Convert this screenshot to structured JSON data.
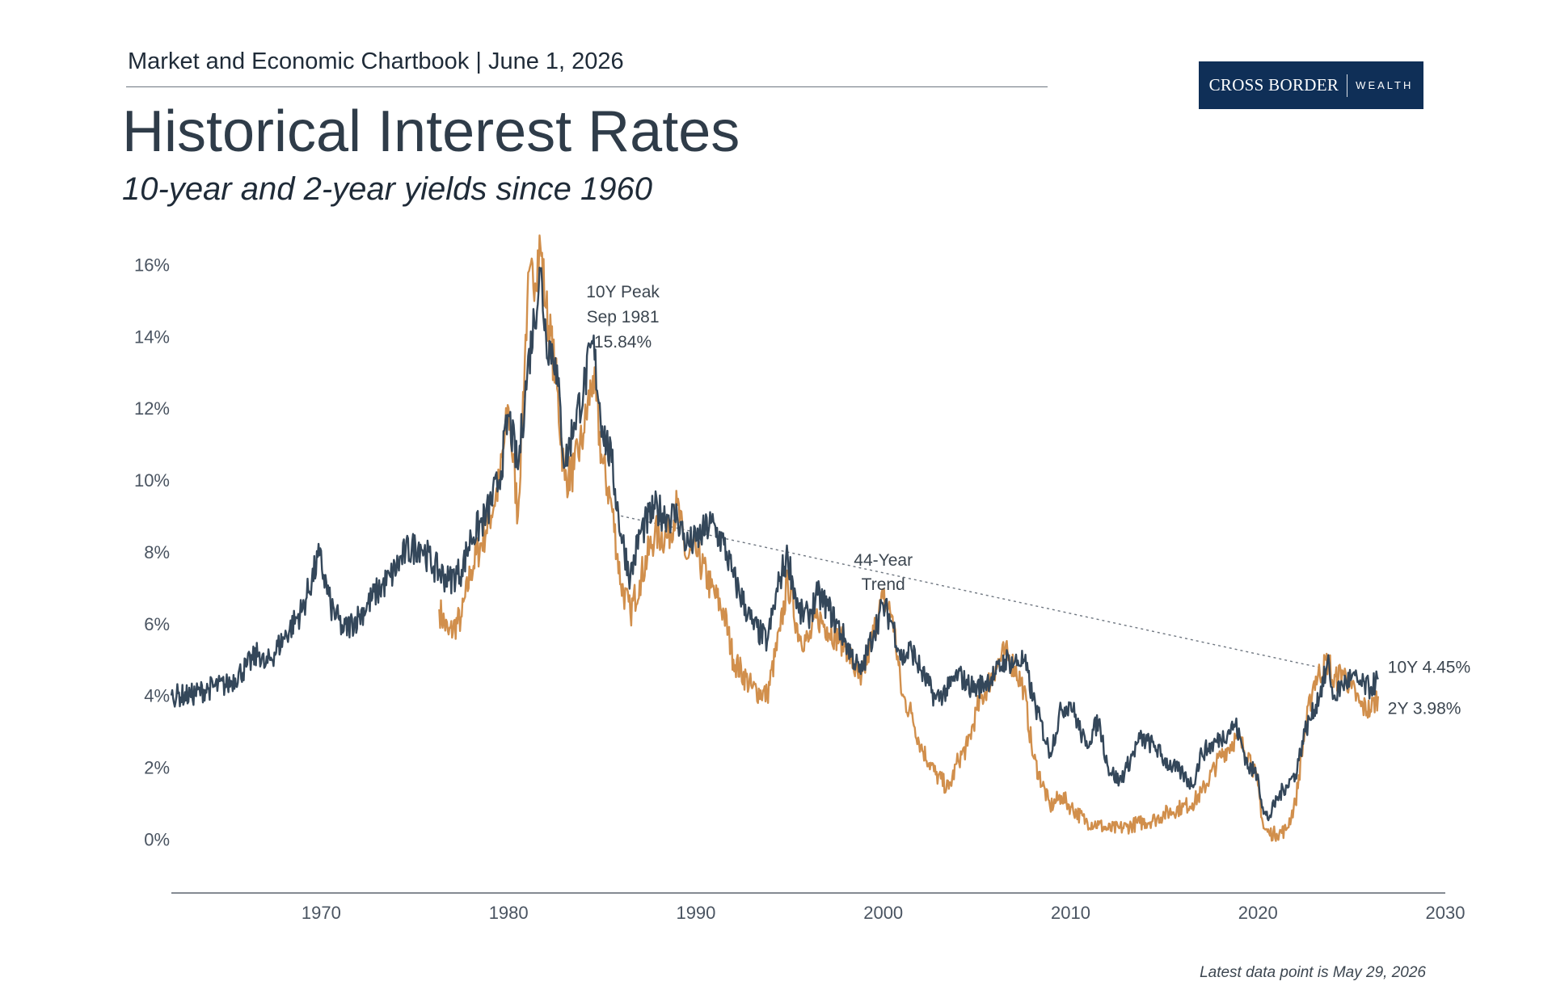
{
  "header": {
    "kicker": "Market and Economic Chartbook | June 1, 2026",
    "title": "Historical Interest Rates",
    "subtitle": "10-year and 2-year yields since 1960"
  },
  "logo": {
    "main": "CROSS BORDER",
    "sub": "WEALTH",
    "bg_color": "#0f2f57"
  },
  "footnote": "Latest data point is May 29, 2026",
  "chart_data": {
    "type": "line",
    "title": "Historical Interest Rates",
    "subtitle": "10-year and 2-year yields since 1960",
    "xlim": [
      1962,
      2030
    ],
    "ylim": [
      -1.5,
      17
    ],
    "x_ticks": [
      1970,
      1980,
      1990,
      2000,
      2010,
      2020,
      2030
    ],
    "x_tick_labels": [
      "1970",
      "1980",
      "1990",
      "2000",
      "2010",
      "2020",
      "2030"
    ],
    "y_ticks": [
      0,
      2,
      4,
      6,
      8,
      10,
      12,
      14,
      16
    ],
    "y_tick_labels": [
      "0%",
      "2%",
      "4%",
      "6%",
      "8%",
      "10%",
      "12%",
      "14%",
      "16%"
    ],
    "grid": false,
    "series": [
      {
        "name": "10Y",
        "color": "#34475a",
        "end_label": "10Y 4.45%",
        "x": [
          1962.0,
          1963.0,
          1964.0,
          1965.0,
          1966.0,
          1966.7,
          1967.0,
          1968.0,
          1969.0,
          1969.9,
          1970.5,
          1971.2,
          1972.0,
          1973.0,
          1973.7,
          1974.5,
          1975.3,
          1976.0,
          1976.8,
          1977.5,
          1978.0,
          1978.8,
          1979.5,
          1980.0,
          1980.5,
          1981.0,
          1981.7,
          1982.0,
          1982.5,
          1983.0,
          1983.5,
          1984.0,
          1984.5,
          1985.0,
          1985.5,
          1986.0,
          1986.5,
          1987.0,
          1987.8,
          1988.5,
          1989.0,
          1989.5,
          1990.0,
          1990.8,
          1991.5,
          1992.0,
          1993.0,
          1993.8,
          1994.5,
          1994.9,
          1995.5,
          1996.0,
          1996.5,
          1997.0,
          1998.0,
          1998.8,
          1999.5,
          2000.0,
          2000.5,
          2001.0,
          2001.5,
          2002.0,
          2002.8,
          2003.5,
          2004.0,
          2004.5,
          2005.0,
          2006.0,
          2006.5,
          2007.0,
          2007.5,
          2008.0,
          2008.9,
          2009.5,
          2010.0,
          2010.8,
          2011.5,
          2012.0,
          2012.6,
          2013.0,
          2013.7,
          2014.5,
          2015.0,
          2016.0,
          2016.5,
          2017.0,
          2018.0,
          2018.8,
          2019.5,
          2020.0,
          2020.3,
          2020.6,
          2021.0,
          2021.5,
          2022.0,
          2022.5,
          2023.0,
          2023.8,
          2024.0,
          2024.5,
          2025.0,
          2025.5,
          2026.0,
          2026.41
        ],
        "y": [
          4.0,
          4.0,
          4.2,
          4.3,
          4.8,
          5.2,
          4.8,
          5.6,
          6.4,
          7.9,
          6.5,
          5.8,
          6.2,
          6.9,
          7.3,
          8.0,
          8.2,
          7.6,
          7.2,
          7.5,
          8.4,
          9.0,
          10.0,
          11.8,
          10.3,
          13.0,
          15.84,
          14.0,
          13.4,
          10.4,
          11.6,
          12.5,
          13.8,
          11.5,
          10.5,
          8.5,
          7.3,
          8.5,
          9.2,
          9.0,
          9.0,
          8.2,
          8.3,
          8.8,
          8.2,
          7.3,
          6.0,
          5.5,
          7.3,
          7.9,
          6.3,
          6.2,
          6.8,
          6.5,
          5.5,
          4.6,
          5.8,
          6.5,
          6.0,
          5.0,
          5.3,
          4.7,
          3.9,
          4.2,
          4.6,
          4.3,
          4.2,
          4.6,
          5.0,
          4.9,
          5.0,
          3.9,
          2.4,
          3.6,
          3.8,
          2.6,
          3.3,
          2.0,
          1.6,
          2.0,
          2.8,
          2.6,
          2.2,
          1.8,
          1.5,
          2.4,
          2.8,
          3.2,
          2.0,
          1.8,
          0.7,
          0.6,
          1.1,
          1.5,
          1.8,
          3.0,
          3.6,
          4.9,
          3.9,
          4.3,
          4.5,
          4.3,
          4.2,
          4.45
        ]
      },
      {
        "name": "2Y",
        "color": "#d18f4c",
        "end_label": "2Y 3.98%",
        "x": [
          1976.3,
          1976.8,
          1977.5,
          1978.0,
          1978.8,
          1979.5,
          1980.0,
          1980.5,
          1981.0,
          1981.7,
          1982.0,
          1982.5,
          1983.0,
          1983.5,
          1984.0,
          1984.5,
          1985.0,
          1985.5,
          1986.0,
          1986.5,
          1987.0,
          1987.8,
          1988.5,
          1989.0,
          1989.5,
          1990.0,
          1990.8,
          1991.5,
          1992.0,
          1993.0,
          1993.8,
          1994.5,
          1994.9,
          1995.5,
          1996.0,
          1996.5,
          1997.0,
          1998.0,
          1998.8,
          1999.5,
          2000.0,
          2000.5,
          2001.0,
          2001.5,
          2002.0,
          2002.8,
          2003.5,
          2004.0,
          2004.5,
          2005.0,
          2006.0,
          2006.5,
          2007.0,
          2007.5,
          2008.0,
          2008.9,
          2009.5,
          2010.0,
          2010.8,
          2011.5,
          2012.0,
          2012.6,
          2013.0,
          2013.7,
          2014.5,
          2015.0,
          2016.0,
          2016.5,
          2017.0,
          2018.0,
          2018.8,
          2019.5,
          2020.0,
          2020.3,
          2020.6,
          2021.0,
          2021.5,
          2022.0,
          2022.5,
          2023.0,
          2023.8,
          2024.0,
          2024.5,
          2025.0,
          2025.5,
          2026.0,
          2026.41
        ],
        "y": [
          6.4,
          5.7,
          6.2,
          7.5,
          8.6,
          9.9,
          12.0,
          9.0,
          15.0,
          16.5,
          14.8,
          13.0,
          10.0,
          10.3,
          11.3,
          12.9,
          10.5,
          9.3,
          7.1,
          6.3,
          7.2,
          8.5,
          8.4,
          9.3,
          7.8,
          8.0,
          7.0,
          6.3,
          5.0,
          4.2,
          4.0,
          5.8,
          7.2,
          5.7,
          5.5,
          6.2,
          5.9,
          5.4,
          4.3,
          5.8,
          6.7,
          6.2,
          4.0,
          3.5,
          2.6,
          1.8,
          1.4,
          2.2,
          2.6,
          3.6,
          4.8,
          5.2,
          4.8,
          4.2,
          2.3,
          0.9,
          1.2,
          0.9,
          0.5,
          0.4,
          0.27,
          0.3,
          0.35,
          0.45,
          0.55,
          0.7,
          0.9,
          1.0,
          1.3,
          2.3,
          2.8,
          2.4,
          1.5,
          0.3,
          0.16,
          0.15,
          0.25,
          1.0,
          3.0,
          4.4,
          5.0,
          4.3,
          4.7,
          4.2,
          3.7,
          3.6,
          3.98
        ]
      }
    ],
    "annotations": [
      {
        "lines": [
          "10Y Peak",
          "Sep 1981",
          "15.84%"
        ],
        "x": 1981.7,
        "y": 15.84
      },
      {
        "lines": [
          "44-Year",
          "Trend"
        ]
      }
    ],
    "trend_line": {
      "name": "44-Year Trend",
      "x": [
        1986.0,
        2024.0
      ],
      "y": [
        9.0,
        4.7
      ]
    }
  }
}
